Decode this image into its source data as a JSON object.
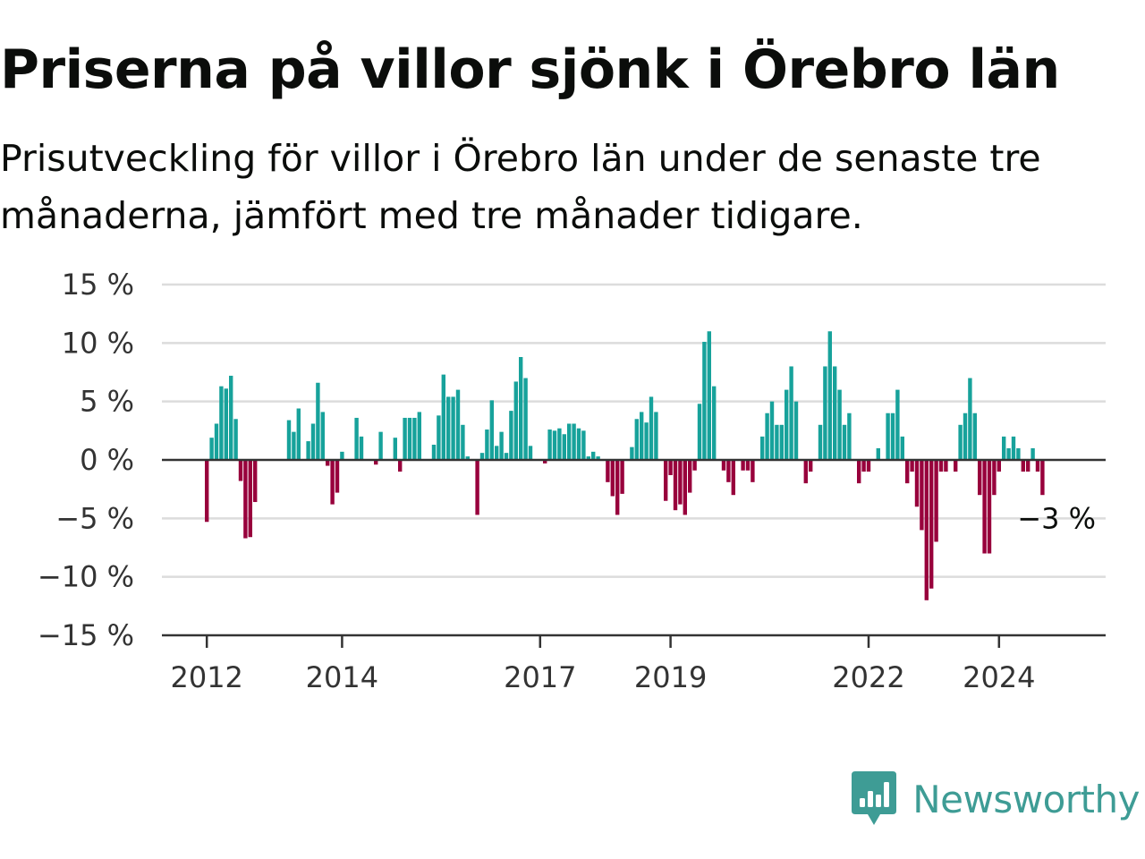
{
  "title": "Priserna på villor sjönk i Örebro län",
  "subtitle": "Prisutveckling för villor i Örebro län under de senaste tre månaderna, jämfört med tre månader tidigare.",
  "brand": {
    "name": "Newsworthy",
    "logo_icon": "bar-chart-speech-bubble-icon",
    "color": "#3e9c95"
  },
  "chart_data": {
    "type": "bar",
    "y_unit": "%",
    "ylim": [
      -15,
      15
    ],
    "y_ticks": [
      15,
      10,
      5,
      0,
      -5,
      -10,
      -15
    ],
    "y_tick_labels": [
      "15 %",
      "10 %",
      "5 %",
      "0 %",
      "−5 %",
      "−10 %",
      "−15 %"
    ],
    "x_ticks": [
      "2012",
      "2014",
      "2017",
      "2019",
      "2022",
      "2024"
    ],
    "grid": true,
    "positive_color": "#17a29b",
    "negative_color": "#98003c",
    "end_label": "−3 %",
    "values": [
      -5.3,
      1.9,
      3.1,
      6.3,
      6.1,
      7.2,
      3.5,
      -1.8,
      -6.7,
      -6.6,
      -3.6,
      0,
      0,
      0,
      0,
      0,
      0,
      3.4,
      2.4,
      4.4,
      0,
      1.6,
      3.1,
      6.6,
      4.1,
      -0.5,
      -3.8,
      -2.8,
      0.7,
      0,
      0,
      3.6,
      2.0,
      0,
      0,
      -0.4,
      2.4,
      0,
      0,
      1.9,
      -1.0,
      3.6,
      3.6,
      3.6,
      4.1,
      0,
      0,
      1.3,
      3.8,
      7.3,
      5.4,
      5.4,
      6.0,
      3.0,
      0.3,
      0,
      -4.7,
      0.6,
      2.6,
      5.1,
      1.2,
      2.4,
      0.6,
      4.2,
      6.7,
      8.8,
      7.0,
      1.2,
      0,
      0,
      -0.3,
      2.6,
      2.5,
      2.7,
      2.2,
      3.1,
      3.1,
      2.7,
      2.5,
      0.3,
      0.7,
      0.3,
      0,
      -1.9,
      -3.1,
      -4.7,
      -2.9,
      0,
      1.1,
      3.5,
      4.1,
      3.2,
      5.4,
      4.1,
      0,
      -3.5,
      -1.3,
      -4.3,
      -3.8,
      -4.7,
      -2.8,
      -0.9,
      4.8,
      10.1,
      11.0,
      6.3,
      0,
      -0.9,
      -1.9,
      -3.0,
      0,
      -0.9,
      -0.9,
      -1.9,
      0,
      2.0,
      4.0,
      5.0,
      3.0,
      3.0,
      6.0,
      8.0,
      5.0,
      0,
      -2.0,
      -1.0,
      0,
      3.0,
      8.0,
      11.0,
      8.0,
      6.0,
      3.0,
      4.0,
      0,
      -2.0,
      -1.0,
      -1.0,
      0,
      1.0,
      0,
      4.0,
      4.0,
      6.0,
      2.0,
      -2.0,
      -1.0,
      -4.0,
      -6.0,
      -12.0,
      -11.0,
      -7.0,
      -1.0,
      -1.0,
      0,
      -1.0,
      3.0,
      4.0,
      7.0,
      4.0,
      -3.0,
      -8.0,
      -8.0,
      -3.0,
      -1.0,
      2.0,
      1.0,
      2.0,
      1.0,
      -1.0,
      -1.0,
      1.0,
      -1.0,
      -3.0
    ]
  }
}
